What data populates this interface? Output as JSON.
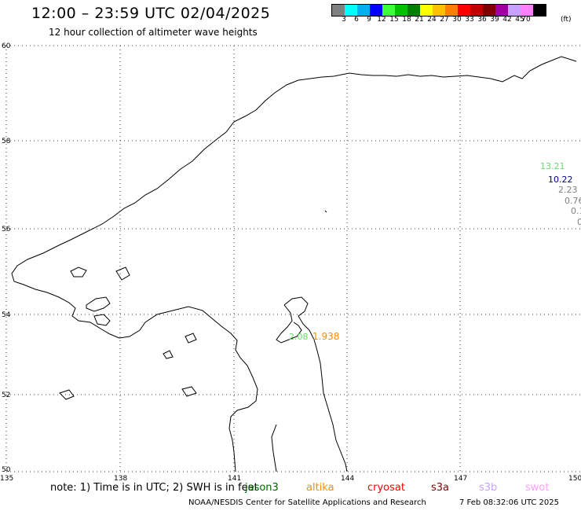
{
  "header": {
    "title": "12:00 – 23:59 UTC 02/04/2025",
    "subtitle": "12 hour collection of altimeter wave heights"
  },
  "colorbar": {
    "colors": [
      "#808080",
      "#00ffff",
      "#00b0f0",
      "#0000ff",
      "#3cff3c",
      "#00c000",
      "#008000",
      "#ffff00",
      "#ffc000",
      "#ff8000",
      "#ff0000",
      "#c00000",
      "#800000",
      "#a000a0",
      "#c8a0ff",
      "#ff80ff",
      "#000000"
    ],
    "labels": [
      "3",
      "6",
      "9",
      "12",
      "15",
      "18",
      "21",
      "24",
      "27",
      "30",
      "33",
      "36",
      "39",
      "42",
      "45",
      "70"
    ],
    "unit": "(ft)"
  },
  "axes": {
    "lon_ticks": [
      "135",
      "138",
      "141",
      "144",
      "147",
      "150"
    ],
    "lat_ticks": [
      "60",
      "58",
      "56",
      "54",
      "52",
      "50"
    ]
  },
  "observations": {
    "right_edge": [
      {
        "text": "13.21",
        "color": "#66dd66"
      },
      {
        "text": "10.22",
        "color": "#000080"
      },
      {
        "text": "2.23",
        "color": "#808080"
      },
      {
        "text": "0.76",
        "color": "#808080"
      },
      {
        "text": "0.1",
        "color": "#808080"
      },
      {
        "text": "0",
        "color": "#808080"
      }
    ],
    "sakhalin_green": {
      "text": "2.08",
      "color": "#66dd66"
    },
    "sakhalin_orange": {
      "text": "1.938",
      "color": "#ff8c00"
    }
  },
  "notes": {
    "text": "note: 1) Time is in UTC; 2) SWH is in feet",
    "missions": [
      {
        "name": "jason3",
        "color": "#006400"
      },
      {
        "name": "altika",
        "color": "#ff8c00"
      },
      {
        "name": "cryosat",
        "color": "#ff0000"
      },
      {
        "name": "s3a",
        "color": "#8b0000"
      },
      {
        "name": "s3b",
        "color": "#c8a0ff"
      },
      {
        "name": "swot",
        "color": "#ffa0ff"
      }
    ]
  },
  "footer": {
    "credit": "NOAA/NESDIS Center for Satellite Applications and Research",
    "timestamp": "7 Feb 08:32:06 UTC 2025"
  }
}
